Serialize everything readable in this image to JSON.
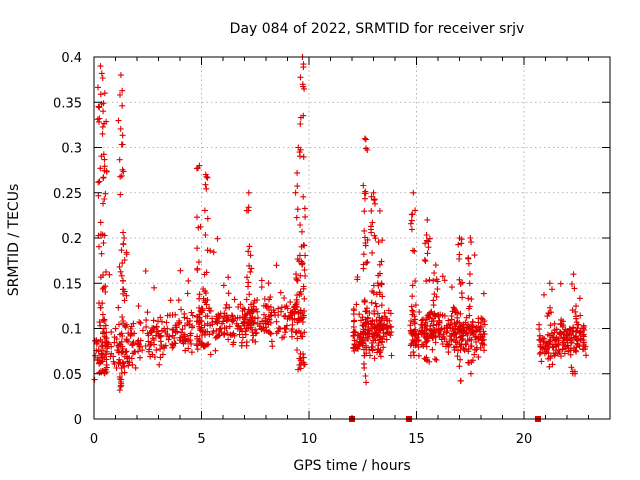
{
  "chart_data": {
    "type": "scatter",
    "title": "Day 084 of 2022, SRMTID for receiver srjv",
    "xlabel": "GPS time / hours",
    "ylabel": "SRMTID / TECUs",
    "xlim": [
      0,
      24
    ],
    "ylim": [
      0,
      0.4
    ],
    "x_ticks": [
      0,
      5,
      10,
      15,
      20
    ],
    "x_tick_labels": [
      "0",
      "5",
      "10",
      "15",
      "20"
    ],
    "y_ticks": [
      0,
      0.05,
      0.1,
      0.15,
      0.2,
      0.25,
      0.3,
      0.35,
      0.4
    ],
    "y_tick_labels": [
      "0",
      "0.05",
      "0.1",
      "0.15",
      "0.2",
      "0.25",
      "0.3",
      "0.35",
      "0.4"
    ],
    "grid": true,
    "marker": "plus",
    "color": "#e00000",
    "data_gap_markers_x": [
      12.0,
      14.65,
      20.65
    ],
    "series": [
      {
        "name": "SRMTID",
        "segments": [
          {
            "x_start": 0.0,
            "x_end": 9.8,
            "base": 0.075,
            "base_end": 0.12,
            "spread": 0.035,
            "n": 520,
            "bursts": [
              {
                "x": 0.3,
                "y": [
                  0.05,
                  0.39
                ]
              },
              {
                "x": 0.5,
                "y": [
                  0.05,
                  0.36
                ]
              },
              {
                "x": 1.25,
                "y": [
                  0.03,
                  0.38
                ]
              },
              {
                "x": 1.4,
                "y": [
                  0.05,
                  0.2
                ]
              },
              {
                "x": 4.9,
                "y": [
                  0.08,
                  0.28
                ]
              },
              {
                "x": 5.2,
                "y": [
                  0.08,
                  0.27
                ]
              },
              {
                "x": 7.2,
                "y": [
                  0.08,
                  0.25
                ]
              },
              {
                "x": 9.5,
                "y": [
                  0.05,
                  0.3
                ]
              },
              {
                "x": 9.7,
                "y": [
                  0.06,
                  0.4
                ]
              }
            ]
          },
          {
            "x_start": 12.05,
            "x_end": 13.9,
            "base": 0.09,
            "base_end": 0.1,
            "spread": 0.03,
            "n": 160,
            "bursts": [
              {
                "x": 12.6,
                "y": [
                  0.04,
                  0.31
                ]
              },
              {
                "x": 13.0,
                "y": [
                  0.06,
                  0.25
                ]
              },
              {
                "x": 13.3,
                "y": [
                  0.06,
                  0.23
                ]
              }
            ]
          },
          {
            "x_start": 14.7,
            "x_end": 18.2,
            "base": 0.095,
            "base_end": 0.095,
            "spread": 0.03,
            "n": 270,
            "bursts": [
              {
                "x": 14.85,
                "y": [
                  0.07,
                  0.25
                ]
              },
              {
                "x": 15.5,
                "y": [
                  0.06,
                  0.22
                ]
              },
              {
                "x": 15.9,
                "y": [
                  0.06,
                  0.17
                ]
              },
              {
                "x": 17.0,
                "y": [
                  0.04,
                  0.2
                ]
              },
              {
                "x": 17.5,
                "y": [
                  0.05,
                  0.2
                ]
              }
            ]
          },
          {
            "x_start": 20.7,
            "x_end": 22.9,
            "base": 0.085,
            "base_end": 0.09,
            "spread": 0.025,
            "n": 170,
            "bursts": [
              {
                "x": 21.2,
                "y": [
                  0.05,
                  0.15
                ]
              },
              {
                "x": 22.3,
                "y": [
                  0.05,
                  0.16
                ]
              }
            ]
          }
        ]
      }
    ]
  }
}
